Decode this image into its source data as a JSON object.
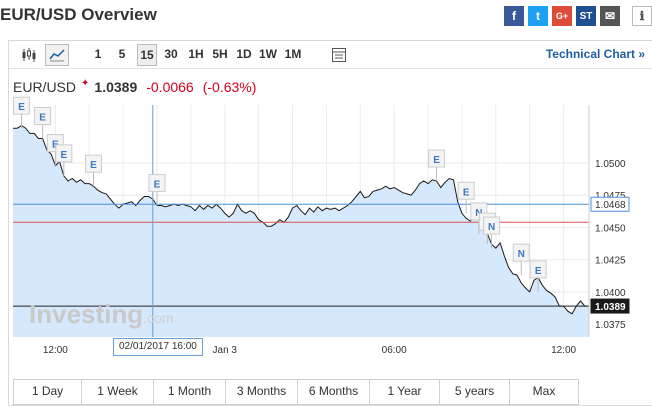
{
  "page": {
    "title": "EUR/USD Overview"
  },
  "social": [
    {
      "name": "facebook-icon",
      "glyph": "f"
    },
    {
      "name": "twitter-icon",
      "glyph": "t"
    },
    {
      "name": "google-plus-icon",
      "glyph": "G+"
    },
    {
      "name": "stocktwits-icon",
      "glyph": "ST"
    },
    {
      "name": "mail-icon",
      "glyph": "✉"
    },
    {
      "name": "info-icon",
      "glyph": "ℹ"
    }
  ],
  "toolbar": {
    "chart_types": [
      "candlestick-icon",
      "area-chart-icon"
    ],
    "intervals": [
      "1",
      "5",
      "15",
      "30",
      "1H",
      "5H",
      "1D",
      "1W",
      "1M"
    ],
    "active_interval": "15",
    "settings_icon": "chart-settings-icon",
    "technical_link": "Technical Chart »"
  },
  "quote": {
    "symbol": "EUR/USD",
    "price": "1.0389",
    "change": "-0.0066",
    "change_pct": "(-0.63%)"
  },
  "colors": {
    "series_line": "#1a1a1a",
    "area_fill": "#d6e8fb",
    "red_line": "#d9534f",
    "blue_line": "#4a90d9",
    "down": "#d0021b",
    "link": "#1e5d9e"
  },
  "watermark": {
    "main": "Investing",
    "suffix": ".com"
  },
  "chart_data": {
    "type": "area",
    "series": [
      {
        "x": [
          0,
          1,
          2,
          3,
          4,
          5,
          6,
          7,
          8,
          9,
          10,
          11,
          12,
          13,
          14,
          15,
          16,
          17,
          18,
          19,
          20,
          21,
          22,
          23,
          24,
          25,
          26,
          27,
          28,
          29,
          30,
          31,
          32,
          33,
          34,
          35,
          36,
          37,
          38,
          39,
          40,
          41,
          42,
          43,
          44,
          45,
          46,
          47,
          48,
          49,
          50,
          51,
          52,
          53,
          54,
          55,
          56,
          57,
          58,
          59,
          60,
          61,
          62,
          63,
          64,
          65,
          66,
          67,
          68,
          69,
          70,
          71,
          72,
          73,
          74,
          75,
          76,
          77,
          78,
          79,
          80,
          81,
          82,
          83,
          84,
          85,
          86,
          87,
          88,
          89,
          90,
          91,
          92,
          93,
          94,
          95,
          96,
          97,
          98,
          99,
          100,
          101,
          102,
          103,
          104,
          105,
          106,
          107,
          108,
          109,
          110,
          111,
          112,
          113,
          114,
          115,
          116,
          117,
          118,
          119,
          120,
          121,
          122,
          123,
          124,
          125,
          126,
          127,
          128,
          129,
          130,
          131,
          132,
          133,
          134,
          135,
          136
        ],
        "y": [
          1.0527,
          1.0527,
          1.0529,
          1.0527,
          1.0523,
          1.0523,
          1.0519,
          1.0519,
          1.051,
          1.0507,
          1.0498,
          1.0501,
          1.049,
          1.0486,
          1.0488,
          1.0485,
          1.0487,
          1.0484,
          1.0484,
          1.0482,
          1.0479,
          1.0477,
          1.0476,
          1.0472,
          1.0468,
          1.0465,
          1.0468,
          1.0469,
          1.047,
          1.0467,
          1.0471,
          1.0474,
          1.0474,
          1.0472,
          1.0467,
          1.0467,
          1.0466,
          1.0467,
          1.0468,
          1.0467,
          1.0468,
          1.0467,
          1.0466,
          1.0463,
          1.0467,
          1.0464,
          1.0467,
          1.0465,
          1.0468,
          1.0465,
          1.0461,
          1.0458,
          1.0461,
          1.0468,
          1.0463,
          1.0461,
          1.0463,
          1.0461,
          1.0456,
          1.0454,
          1.0451,
          1.0451,
          1.0453,
          1.0456,
          1.0454,
          1.0458,
          1.0465,
          1.0467,
          1.0463,
          1.046,
          1.0465,
          1.0462,
          1.0466,
          1.0463,
          1.0465,
          1.0464,
          1.0465,
          1.0463,
          1.0465,
          1.0467,
          1.047,
          1.0474,
          1.0478,
          1.0473,
          1.0474,
          1.0478,
          1.0479,
          1.048,
          1.0482,
          1.048,
          1.0481,
          1.0479,
          1.0477,
          1.0476,
          1.0475,
          1.0479,
          1.0484,
          1.0486,
          1.0484,
          1.0487,
          1.0486,
          1.0481,
          1.0485,
          1.0488,
          1.0487,
          1.047,
          1.0461,
          1.0457,
          1.0455,
          1.0459,
          1.0458,
          1.0452,
          1.0445,
          1.0437,
          1.0434,
          1.0438,
          1.0428,
          1.0419,
          1.0414,
          1.0413,
          1.0407,
          1.0403,
          1.04,
          1.0409,
          1.0411,
          1.0405,
          1.0401,
          1.0399,
          1.0396,
          1.0389,
          1.0389,
          1.0385,
          1.0383,
          1.0389,
          1.0393,
          1.0389,
          1.0389
        ]
      }
    ],
    "x_tick_labels": [
      {
        "label": "12:00",
        "x": 10
      },
      {
        "label": "Jan 3",
        "x": 50
      },
      {
        "label": "06:00",
        "x": 90
      },
      {
        "label": "12:00",
        "x": 130
      }
    ],
    "y_ticks": [
      1.0375,
      1.04,
      1.0425,
      1.045,
      1.0475,
      1.05
    ],
    "y_tick_labels": [
      "1.0375",
      "1.0400",
      "1.0425",
      "1.0450",
      "1.0475",
      "1.0500"
    ],
    "ylim": [
      1.0365,
      1.0545
    ],
    "xlim": [
      0,
      136
    ],
    "hlines": [
      {
        "value": 1.0468,
        "label": "1.0468",
        "color": "blue"
      },
      {
        "value": 1.0454,
        "label": "",
        "color": "red"
      },
      {
        "value": 1.0389,
        "label": "1.0389",
        "color": "dark"
      }
    ],
    "crosshair": {
      "x": 33,
      "label": "02/01/2017 16:00"
    },
    "events": [
      {
        "x": 2,
        "y": 1.0527,
        "label": "E"
      },
      {
        "x": 7,
        "y": 1.0519,
        "label": "E"
      },
      {
        "x": 10,
        "y": 1.0498,
        "label": "E"
      },
      {
        "x": 12,
        "y": 1.049,
        "label": "E"
      },
      {
        "x": 19,
        "y": 1.0482,
        "label": "E"
      },
      {
        "x": 34,
        "y": 1.0467,
        "label": "E"
      },
      {
        "x": 100,
        "y": 1.0486,
        "label": "E"
      },
      {
        "x": 107,
        "y": 1.0461,
        "label": "E"
      },
      {
        "x": 110,
        "y": 1.0445,
        "label": "N"
      },
      {
        "x": 112,
        "y": 1.0437,
        "label": "E"
      },
      {
        "x": 113,
        "y": 1.0434,
        "label": "N"
      },
      {
        "x": 120,
        "y": 1.0413,
        "label": "N"
      },
      {
        "x": 124,
        "y": 1.04,
        "label": "E"
      }
    ]
  },
  "tabs": [
    "1 Day",
    "1 Week",
    "1 Month",
    "3 Months",
    "6 Months",
    "1 Year",
    "5 years",
    "Max"
  ]
}
